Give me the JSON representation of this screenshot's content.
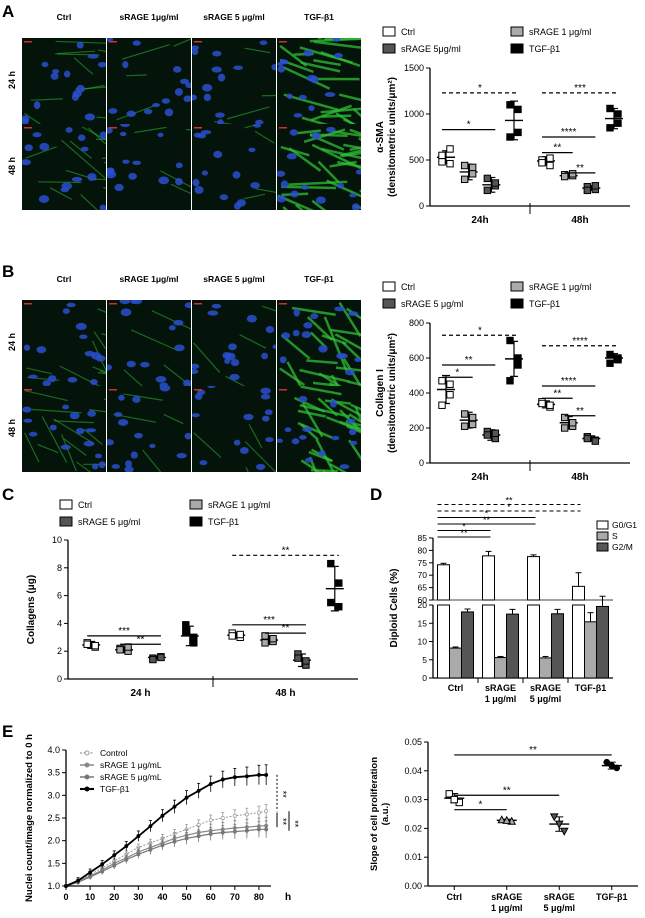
{
  "panels": [
    "A",
    "B",
    "C",
    "D",
    "E"
  ],
  "colors": {
    "green": "#31c93a",
    "blue": "#1a3bb0",
    "black": "#000000",
    "dark_grey": "#555555",
    "light_grey": "#aaaaaa",
    "white": "#ffffff"
  },
  "micrographs": {
    "columns": [
      "Ctrl",
      "sRAGE 1μg/ml",
      "sRAGE 5 μg/ml",
      "TGF-β1"
    ],
    "rows": [
      "24 h",
      "48 h"
    ]
  },
  "legend_A": [
    "Ctrl",
    "sRAGE 1 μg/ml",
    "sRAGE 5μg/ml",
    "TGF-β1"
  ],
  "legend_B": [
    "Ctrl",
    "sRAGE 1 μg/ml",
    "sRAGE 5 μg/ml",
    "TGF-β1"
  ],
  "legend_C": [
    "Ctrl",
    "sRAGE 1 μg/ml",
    "sRAGE 5 μg/ml",
    "TGF-β1"
  ],
  "legend_D": [
    "G0/G1",
    "S",
    "G2/M"
  ],
  "legend_E": [
    "Control",
    "sRAGE 1 μg/mL",
    "sRAGE 5 μg/mL",
    "TGF-β1"
  ],
  "chart_data": [
    {
      "id": "A",
      "type": "scatter",
      "ylabel": "α-SMA\n(densitometric units/μm²)",
      "ylim": [
        0,
        1500
      ],
      "yticks": [
        0,
        500,
        1000,
        1500
      ],
      "groups": [
        "24h",
        "48h"
      ],
      "series": [
        {
          "name": "Ctrl",
          "points": [
            [
              550,
              620,
              480,
              460
            ],
            [
              500,
              440,
              470,
              520
            ]
          ],
          "mean": [
            530,
            490
          ],
          "sd": [
            70,
            45
          ]
        },
        {
          "name": "sRAGE 1 μg/ml",
          "points": [
            [
              440,
              350,
              290,
              420
            ],
            [
              340,
              330,
              320,
              350
            ]
          ],
          "mean": [
            370,
            330
          ],
          "sd": [
            85,
            25
          ]
        },
        {
          "name": "sRAGE 5μg/ml",
          "points": [
            [
              300,
              220,
              170,
              250
            ],
            [
              210,
              180,
              170,
              220
            ]
          ],
          "mean": [
            230,
            195
          ],
          "sd": [
            80,
            25
          ]
        },
        {
          "name": "TGF-β1",
          "points": [
            [
              1100,
              1050,
              750,
              800
            ],
            [
              1060,
              1000,
              850,
              900
            ]
          ],
          "mean": [
            930,
            950
          ],
          "sd": [
            210,
            110
          ]
        }
      ],
      "significance": [
        {
          "label": "*",
          "style": "dashed",
          "group": 0,
          "from": 0,
          "to": 3,
          "y": 1230
        },
        {
          "label": "*",
          "style": "solid",
          "group": 0,
          "from": 0,
          "to": 2,
          "y": 830
        },
        {
          "label": "***",
          "style": "dashed",
          "group": 1,
          "from": 0,
          "to": 3,
          "y": 1230
        },
        {
          "label": "****",
          "style": "solid",
          "group": 1,
          "from": 0,
          "to": 2,
          "y": 750
        },
        {
          "label": "**",
          "style": "solid",
          "group": 1,
          "from": 0,
          "to": 1,
          "y": 580
        },
        {
          "label": "**",
          "style": "solid",
          "group": 1,
          "from": 1,
          "to": 2,
          "y": 360
        }
      ]
    },
    {
      "id": "B",
      "type": "scatter",
      "ylabel": "Collagen I\n(densitometric units/μm²)",
      "ylim": [
        0,
        800
      ],
      "yticks": [
        0,
        200,
        400,
        600,
        800
      ],
      "groups": [
        "24h",
        "48h"
      ],
      "series": [
        {
          "name": "Ctrl",
          "points": [
            [
              470,
              390,
              330,
              450
            ],
            [
              350,
              320,
              340,
              330
            ]
          ],
          "mean": [
            420,
            335
          ],
          "sd": [
            80,
            20
          ]
        },
        {
          "name": "sRAGE 1 μg/ml",
          "points": [
            [
              280,
              220,
              210,
              260
            ],
            [
              260,
              210,
              200,
              230
            ]
          ],
          "mean": [
            245,
            230
          ],
          "sd": [
            45,
            35
          ]
        },
        {
          "name": "sRAGE 5 μg/ml",
          "points": [
            [
              180,
              140,
              160,
              170
            ],
            [
              150,
              130,
              140,
              125
            ]
          ],
          "mean": [
            160,
            140
          ],
          "sd": [
            30,
            15
          ]
        },
        {
          "name": "TGF-β1",
          "points": [
            [
              700,
              600,
              470,
              560
            ],
            [
              620,
              600,
              570,
              590
            ]
          ],
          "mean": [
            595,
            600
          ],
          "sd": [
            100,
            25
          ]
        }
      ],
      "significance": [
        {
          "label": "*",
          "style": "dashed",
          "group": 0,
          "from": 0,
          "to": 3,
          "y": 730
        },
        {
          "label": "**",
          "style": "solid",
          "group": 0,
          "from": 0,
          "to": 2,
          "y": 560
        },
        {
          "label": "*",
          "style": "solid",
          "group": 0,
          "from": 0,
          "to": 1,
          "y": 490
        },
        {
          "label": "****",
          "style": "dashed",
          "group": 1,
          "from": 0,
          "to": 3,
          "y": 670
        },
        {
          "label": "****",
          "style": "solid",
          "group": 1,
          "from": 0,
          "to": 2,
          "y": 440
        },
        {
          "label": "**",
          "style": "solid",
          "group": 1,
          "from": 0,
          "to": 1,
          "y": 370
        },
        {
          "label": "**",
          "style": "solid",
          "group": 1,
          "from": 1,
          "to": 2,
          "y": 270
        }
      ]
    },
    {
      "id": "C",
      "type": "scatter",
      "ylabel": "Collagens (μg)",
      "ylim": [
        0,
        10
      ],
      "yticks": [
        0,
        2,
        4,
        6,
        8,
        10
      ],
      "groups": [
        "24 h",
        "48 h"
      ],
      "series": [
        {
          "name": "Ctrl",
          "points": [
            [
              2.6,
              2.3,
              2.5,
              2.4
            ],
            [
              3.3,
              3.0,
              3.1,
              3.2
            ]
          ],
          "mean": [
            2.45,
            3.15
          ],
          "sd": [
            0.25,
            0.2
          ]
        },
        {
          "name": "sRAGE 1 μg/ml",
          "points": [
            [
              2.2,
              2.0,
              2.1,
              2.3
            ],
            [
              3.1,
              2.7,
              2.6,
              2.9
            ]
          ],
          "mean": [
            2.1,
            2.8
          ],
          "sd": [
            0.2,
            0.3
          ]
        },
        {
          "name": "sRAGE 5 μg/ml",
          "points": [
            [
              1.5,
              1.6,
              1.4,
              1.55
            ],
            [
              1.8,
              1.0,
              1.5,
              1.3
            ]
          ],
          "mean": [
            1.55,
            1.35
          ],
          "sd": [
            0.1,
            0.45
          ]
        },
        {
          "name": "TGF-β1",
          "points": [
            [
              3.4,
              2.6,
              3.9,
              3.0
            ],
            [
              8.3,
              5.2,
              5.5,
              6.9
            ]
          ],
          "mean": [
            3.1,
            6.5
          ],
          "sd": [
            0.7,
            1.6
          ]
        }
      ],
      "significance": [
        {
          "label": "***",
          "style": "solid",
          "group": 0,
          "from": 0,
          "to": 2,
          "y": 3.1
        },
        {
          "label": "**",
          "style": "solid",
          "group": 0,
          "from": 1,
          "to": 2,
          "y": 2.5
        },
        {
          "label": "**",
          "style": "dashed",
          "group": 1,
          "from": 0,
          "to": 3,
          "y": 8.9
        },
        {
          "label": "***",
          "style": "solid",
          "group": 1,
          "from": 0,
          "to": 2,
          "y": 3.9
        },
        {
          "label": "**",
          "style": "solid",
          "group": 1,
          "from": 1,
          "to": 2,
          "y": 3.3
        }
      ]
    },
    {
      "id": "D",
      "type": "bar",
      "ylabel": "Diploid Cells (%)",
      "categories": [
        "Ctrl",
        "sRAGE\n1 μg/ml",
        "sRAGE\n5 μg/ml",
        "TGF-β1"
      ],
      "lower_ticks": [
        0,
        5,
        10,
        15,
        20
      ],
      "upper_ticks": [
        60,
        65,
        70,
        75,
        80,
        85
      ],
      "series": [
        {
          "name": "G0/G1",
          "values": [
            74.2,
            77.8,
            77.5,
            65.5
          ],
          "errors": [
            0.6,
            1.8,
            0.7,
            5.5
          ]
        },
        {
          "name": "S",
          "values": [
            8.2,
            5.6,
            5.5,
            15.4
          ],
          "errors": [
            0.3,
            0.3,
            0.4,
            2.5
          ]
        },
        {
          "name": "G2/M",
          "values": [
            18.1,
            17.5,
            17.6,
            19.6
          ],
          "errors": [
            0.8,
            1.3,
            1.2,
            2.8
          ]
        }
      ],
      "significance": [
        {
          "label": "**",
          "style": "dashed",
          "from": 0,
          "to": 3,
          "level": 1
        },
        {
          "label": "*",
          "style": "dashed",
          "from": 0,
          "to": 3,
          "level": 2
        },
        {
          "label": "*",
          "style": "solid",
          "from": 0,
          "to": 2,
          "level": 3
        },
        {
          "label": "**",
          "style": "solid",
          "from": 0,
          "to": 2,
          "level": 4
        },
        {
          "label": "*",
          "style": "solid",
          "from": 0,
          "to": 1,
          "level": 5
        },
        {
          "label": "**",
          "style": "solid",
          "from": 0,
          "to": 1,
          "level": 6
        }
      ]
    },
    {
      "id": "E1",
      "type": "line",
      "xlabel": "h",
      "ylabel": "Nuclei count/image normalized to 0 h",
      "xlim": [
        0,
        85
      ],
      "ylim": [
        1.0,
        4.0
      ],
      "xticks": [
        0,
        10,
        20,
        30,
        40,
        50,
        60,
        70,
        80
      ],
      "yticks": [
        1.0,
        1.5,
        2.0,
        2.5,
        3.0,
        3.5,
        4.0
      ],
      "x": [
        0,
        5,
        10,
        15,
        20,
        25,
        30,
        35,
        40,
        45,
        50,
        55,
        60,
        65,
        70,
        75,
        80,
        83
      ],
      "series": [
        {
          "name": "Control",
          "values": [
            1.0,
            1.1,
            1.25,
            1.4,
            1.55,
            1.7,
            1.85,
            1.95,
            2.05,
            2.15,
            2.25,
            2.35,
            2.45,
            2.5,
            2.55,
            2.58,
            2.62,
            2.65
          ],
          "error": 0.12
        },
        {
          "name": "sRAGE 1 μg/mL",
          "values": [
            1.0,
            1.1,
            1.22,
            1.35,
            1.5,
            1.62,
            1.75,
            1.85,
            1.95,
            2.05,
            2.12,
            2.18,
            2.22,
            2.25,
            2.28,
            2.3,
            2.32,
            2.33
          ],
          "error": 0.15
        },
        {
          "name": "sRAGE 5 μg/mL",
          "values": [
            1.0,
            1.08,
            1.2,
            1.32,
            1.45,
            1.58,
            1.7,
            1.8,
            1.9,
            1.98,
            2.05,
            2.1,
            2.15,
            2.18,
            2.2,
            2.22,
            2.25,
            2.25
          ],
          "error": 0.15
        },
        {
          "name": "TGF-β1",
          "values": [
            1.0,
            1.12,
            1.3,
            1.48,
            1.68,
            1.88,
            2.1,
            2.32,
            2.55,
            2.75,
            2.95,
            3.1,
            3.25,
            3.35,
            3.4,
            3.42,
            3.45,
            3.45
          ],
          "error": 0.18
        }
      ],
      "annotations": [
        "**",
        "**",
        "**"
      ]
    },
    {
      "id": "E2",
      "type": "scatter",
      "ylabel": "Slope of cell proliferation\n(a.u.)",
      "ylim": [
        0.0,
        0.05
      ],
      "yticks": [
        0.0,
        0.01,
        0.02,
        0.03,
        0.04,
        0.05
      ],
      "categories": [
        "Ctrl",
        "sRAGE\n1 μg/ml",
        "sRAGE\n5 μg/ml",
        "TGF-β1"
      ],
      "points": [
        [
          0.032,
          0.029,
          0.03
        ],
        [
          0.023,
          0.0225,
          0.0228
        ],
        [
          0.024,
          0.019,
          0.0215
        ],
        [
          0.043,
          0.041,
          0.0418
        ]
      ],
      "means": [
        0.0305,
        0.0228,
        0.0215,
        0.0418
      ],
      "sds": [
        0.0016,
        0.0004,
        0.0025,
        0.0012
      ],
      "significance": [
        {
          "label": "**",
          "from": 0,
          "to": 3,
          "y": 0.0455
        },
        {
          "label": "**",
          "from": 0,
          "to": 2,
          "y": 0.0315
        },
        {
          "label": "*",
          "from": 0,
          "to": 1,
          "y": 0.0265
        }
      ]
    }
  ]
}
